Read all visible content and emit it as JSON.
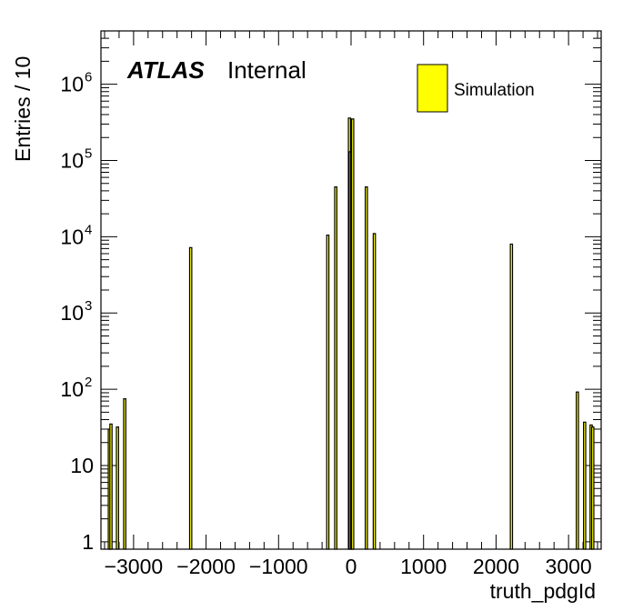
{
  "chart_data": {
    "type": "bar",
    "title": "",
    "xlabel": "truth_pdgId",
    "ylabel": "Entries / 10",
    "xlim": [
      -3450,
      3450
    ],
    "ylim": [
      0.8,
      5000000
    ],
    "yscale": "log",
    "grid": false,
    "bin_width": 10,
    "x_ticks": [
      -3000,
      -2000,
      -1000,
      0,
      1000,
      2000,
      3000
    ],
    "x_tick_labels": [
      "−3000",
      "−2000",
      "−1000",
      "0",
      "1000",
      "2000",
      "3000"
    ],
    "y_ticks": [
      1,
      10,
      100,
      1000,
      10000,
      100000,
      1000000
    ],
    "y_tick_labels": [
      {
        "base": "1",
        "exp": ""
      },
      {
        "base": "10",
        "exp": ""
      },
      {
        "base": "10",
        "exp": "2"
      },
      {
        "base": "10",
        "exp": "3"
      },
      {
        "base": "10",
        "exp": "4"
      },
      {
        "base": "10",
        "exp": "5"
      },
      {
        "base": "10",
        "exp": "6"
      }
    ],
    "series": [
      {
        "name": "Simulation",
        "color": "#ffff00",
        "x": [
          -3334,
          -3312,
          -3222,
          -3122,
          -2212,
          -321,
          -211,
          -22,
          -11,
          11,
          22,
          211,
          321,
          2212,
          3122,
          3222,
          3312,
          3334
        ],
        "values": [
          30,
          35,
          32,
          75,
          7200,
          10500,
          45000,
          360000,
          130000,
          130000,
          350000,
          45000,
          11000,
          8000,
          92,
          37,
          34,
          32
        ]
      }
    ],
    "annotations": [
      {
        "text": "ATLAS",
        "style": "bold-italic"
      },
      {
        "text": "Internal",
        "style": "normal"
      }
    ],
    "legend": {
      "placement": "top-right",
      "entries": [
        "Simulation"
      ]
    }
  }
}
